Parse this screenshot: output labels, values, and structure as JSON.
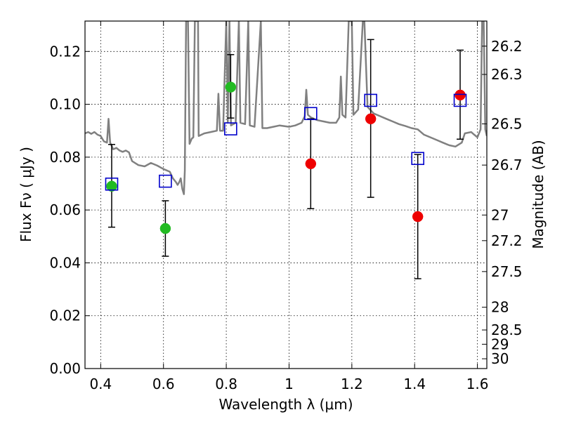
{
  "chart_data": {
    "type": "scatter",
    "xlabel": "Wavelength  λ (μm)",
    "ylabel": "Flux  Fν  ( μJy )",
    "ylabel_right": "Magnitude (AB)",
    "xlim": [
      0.35,
      1.63
    ],
    "ylim": [
      0.0,
      0.1315
    ],
    "grid": true,
    "x_ticks": [
      0.4,
      0.6,
      0.8,
      1.0,
      1.2,
      1.4,
      1.6
    ],
    "x_tick_labels": [
      "0.4",
      "0.6",
      "0.8",
      "1",
      "1.2",
      "1.4",
      "1.6"
    ],
    "y_ticks": [
      0.0,
      0.02,
      0.04,
      0.06,
      0.08,
      0.1,
      0.12
    ],
    "y_tick_labels": [
      "0.00",
      "0.02",
      "0.04",
      "0.06",
      "0.08",
      "0.10",
      "0.12"
    ],
    "right_ticks": [
      {
        "label": "26.2",
        "flux": 0.122
      },
      {
        "label": "26.3",
        "flux": 0.1113
      },
      {
        "label": "26.5",
        "flux": 0.0926
      },
      {
        "label": "26.7",
        "flux": 0.077
      },
      {
        "label": "27",
        "flux": 0.0581
      },
      {
        "label": "27.2",
        "flux": 0.0484
      },
      {
        "label": "27.5",
        "flux": 0.0367
      },
      {
        "label": "28",
        "flux": 0.0232
      },
      {
        "label": "28.5",
        "flux": 0.0146
      },
      {
        "label": "29",
        "flux": 0.0092
      },
      {
        "label": "30",
        "flux": 0.0037
      }
    ],
    "series": [
      {
        "marker": "circle",
        "color": "#22bb22",
        "points": [
          {
            "x": 0.435,
            "y": 0.069
          },
          {
            "x": 0.606,
            "y": 0.053
          },
          {
            "x": 0.814,
            "y": 0.1065
          }
        ]
      },
      {
        "marker": "circle",
        "color": "#ee0000",
        "points": [
          {
            "x": 1.069,
            "y": 0.0775
          },
          {
            "x": 1.26,
            "y": 0.0945
          },
          {
            "x": 1.41,
            "y": 0.0575
          },
          {
            "x": 1.545,
            "y": 0.1035
          }
        ]
      },
      {
        "marker": "open-square",
        "color": "#0000cc",
        "points": [
          {
            "x": 0.435,
            "y": 0.0698
          },
          {
            "x": 0.606,
            "y": 0.0709
          },
          {
            "x": 0.814,
            "y": 0.0907
          },
          {
            "x": 1.069,
            "y": 0.0965
          },
          {
            "x": 1.26,
            "y": 0.1015
          },
          {
            "x": 1.41,
            "y": 0.0795
          },
          {
            "x": 1.545,
            "y": 0.1015
          }
        ]
      }
    ],
    "error_bars": [
      {
        "x": 0.435,
        "low": 0.0535,
        "high": 0.0848
      },
      {
        "x": 0.606,
        "low": 0.0425,
        "high": 0.0635
      },
      {
        "x": 0.814,
        "low": 0.0948,
        "high": 0.1188
      },
      {
        "x": 1.069,
        "low": 0.0605,
        "high": 0.0945
      },
      {
        "x": 1.26,
        "low": 0.0648,
        "high": 0.1245
      },
      {
        "x": 1.41,
        "low": 0.034,
        "high": 0.081
      },
      {
        "x": 1.545,
        "low": 0.0868,
        "high": 0.1205
      }
    ],
    "model_spectrum": {
      "color": "#808080",
      "points": [
        [
          0.35,
          0.089
        ],
        [
          0.36,
          0.0895
        ],
        [
          0.37,
          0.0888
        ],
        [
          0.38,
          0.0895
        ],
        [
          0.39,
          0.0885
        ],
        [
          0.4,
          0.088
        ],
        [
          0.41,
          0.086
        ],
        [
          0.42,
          0.0855
        ],
        [
          0.425,
          0.0945
        ],
        [
          0.43,
          0.0855
        ],
        [
          0.44,
          0.083
        ],
        [
          0.45,
          0.0835
        ],
        [
          0.46,
          0.0825
        ],
        [
          0.47,
          0.082
        ],
        [
          0.48,
          0.0825
        ],
        [
          0.49,
          0.0818
        ],
        [
          0.5,
          0.0785
        ],
        [
          0.52,
          0.077
        ],
        [
          0.54,
          0.0765
        ],
        [
          0.56,
          0.0778
        ],
        [
          0.58,
          0.0768
        ],
        [
          0.6,
          0.0755
        ],
        [
          0.62,
          0.0745
        ],
        [
          0.63,
          0.072
        ],
        [
          0.64,
          0.0705
        ],
        [
          0.645,
          0.0695
        ],
        [
          0.65,
          0.0705
        ],
        [
          0.655,
          0.072
        ],
        [
          0.66,
          0.068
        ],
        [
          0.665,
          0.066
        ],
        [
          0.668,
          0.075
        ],
        [
          0.672,
          0.1315
        ],
        [
          0.678,
          0.1315
        ],
        [
          0.683,
          0.085
        ],
        [
          0.69,
          0.087
        ],
        [
          0.695,
          0.0875
        ],
        [
          0.7,
          0.1315
        ],
        [
          0.71,
          0.1315
        ],
        [
          0.712,
          0.088
        ],
        [
          0.73,
          0.089
        ],
        [
          0.75,
          0.0895
        ],
        [
          0.77,
          0.09
        ],
        [
          0.775,
          0.104
        ],
        [
          0.78,
          0.09
        ],
        [
          0.79,
          0.09
        ],
        [
          0.8,
          0.1315
        ],
        [
          0.805,
          0.093
        ],
        [
          0.81,
          0.1315
        ],
        [
          0.815,
          0.092
        ],
        [
          0.83,
          0.093
        ],
        [
          0.84,
          0.1315
        ],
        [
          0.845,
          0.093
        ],
        [
          0.86,
          0.0925
        ],
        [
          0.87,
          0.1315
        ],
        [
          0.875,
          0.092
        ],
        [
          0.89,
          0.0915
        ],
        [
          0.91,
          0.1315
        ],
        [
          0.915,
          0.091
        ],
        [
          0.93,
          0.091
        ],
        [
          0.95,
          0.0915
        ],
        [
          0.97,
          0.092
        ],
        [
          1.0,
          0.0915
        ],
        [
          1.02,
          0.092
        ],
        [
          1.04,
          0.093
        ],
        [
          1.05,
          0.0955
        ],
        [
          1.055,
          0.1055
        ],
        [
          1.06,
          0.096
        ],
        [
          1.07,
          0.095
        ],
        [
          1.09,
          0.094
        ],
        [
          1.11,
          0.0935
        ],
        [
          1.13,
          0.093
        ],
        [
          1.15,
          0.093
        ],
        [
          1.16,
          0.095
        ],
        [
          1.165,
          0.1105
        ],
        [
          1.17,
          0.096
        ],
        [
          1.18,
          0.095
        ],
        [
          1.19,
          0.1315
        ],
        [
          1.2,
          0.1315
        ],
        [
          1.205,
          0.096
        ],
        [
          1.22,
          0.098
        ],
        [
          1.235,
          0.1315
        ],
        [
          1.24,
          0.1315
        ],
        [
          1.25,
          0.099
        ],
        [
          1.27,
          0.0965
        ],
        [
          1.29,
          0.0955
        ],
        [
          1.31,
          0.0945
        ],
        [
          1.33,
          0.0935
        ],
        [
          1.35,
          0.0925
        ],
        [
          1.37,
          0.0918
        ],
        [
          1.39,
          0.091
        ],
        [
          1.41,
          0.0905
        ],
        [
          1.43,
          0.0885
        ],
        [
          1.45,
          0.0875
        ],
        [
          1.47,
          0.0865
        ],
        [
          1.49,
          0.0855
        ],
        [
          1.51,
          0.0845
        ],
        [
          1.53,
          0.084
        ],
        [
          1.55,
          0.0855
        ],
        [
          1.56,
          0.089
        ],
        [
          1.58,
          0.0895
        ],
        [
          1.59,
          0.0885
        ],
        [
          1.6,
          0.0875
        ],
        [
          1.61,
          0.0905
        ],
        [
          1.615,
          0.1315
        ],
        [
          1.62,
          0.1315
        ],
        [
          1.625,
          0.0905
        ],
        [
          1.63,
          0.088
        ]
      ]
    }
  }
}
